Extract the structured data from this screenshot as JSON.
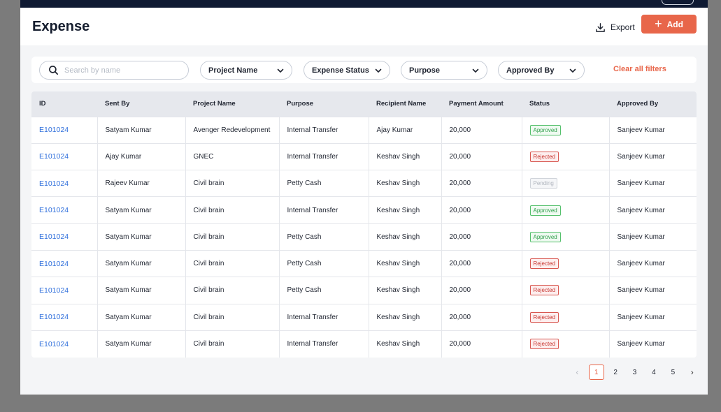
{
  "header": {
    "title": "Expense",
    "export_label": "Export",
    "add_label": "Add"
  },
  "filters": {
    "search_placeholder": "Search by name",
    "dropdowns": [
      "Project Name",
      "Expense Status",
      "Purpose",
      "Approved By"
    ],
    "clear_label": "Clear all filters"
  },
  "table": {
    "columns": [
      "ID",
      "Sent By",
      "Project Name",
      "Purpose",
      "Recipient Name",
      "Payment Amount",
      "Status",
      "Approved By"
    ],
    "rows": [
      {
        "id": "E101024",
        "sent_by": "Satyam Kumar",
        "project": "Avenger Redevelopment",
        "purpose": "Internal Transfer",
        "recipient": "Ajay Kumar",
        "amount": "20,000",
        "status": "Approved",
        "approved_by": "Sanjeev Kumar"
      },
      {
        "id": "E101024",
        "sent_by": "Ajay Kumar",
        "project": "GNEC",
        "purpose": "Internal Transfer",
        "recipient": "Keshav Singh",
        "amount": "20,000",
        "status": "Rejected",
        "approved_by": "Sanjeev Kumar"
      },
      {
        "id": "E101024",
        "sent_by": "Rajeev Kumar",
        "project": "Civil brain",
        "purpose": "Petty Cash",
        "recipient": "Keshav Singh",
        "amount": "20,000",
        "status": "Pending",
        "approved_by": "Sanjeev Kumar"
      },
      {
        "id": "E101024",
        "sent_by": "Satyam Kumar",
        "project": "Civil brain",
        "purpose": "Internal Transfer",
        "recipient": "Keshav Singh",
        "amount": "20,000",
        "status": "Approved",
        "approved_by": "Sanjeev Kumar"
      },
      {
        "id": "E101024",
        "sent_by": "Satyam Kumar",
        "project": "Civil brain",
        "purpose": "Petty Cash",
        "recipient": "Keshav Singh",
        "amount": "20,000",
        "status": "Approved",
        "approved_by": "Sanjeev Kumar"
      },
      {
        "id": "E101024",
        "sent_by": "Satyam Kumar",
        "project": "Civil brain",
        "purpose": "Petty Cash",
        "recipient": "Keshav Singh",
        "amount": "20,000",
        "status": "Rejected",
        "approved_by": "Sanjeev Kumar"
      },
      {
        "id": "E101024",
        "sent_by": "Satyam Kumar",
        "project": "Civil brain",
        "purpose": "Petty Cash",
        "recipient": "Keshav Singh",
        "amount": "20,000",
        "status": "Rejected",
        "approved_by": "Sanjeev Kumar"
      },
      {
        "id": "E101024",
        "sent_by": "Satyam Kumar",
        "project": "Civil brain",
        "purpose": "Internal Transfer",
        "recipient": "Keshav Singh",
        "amount": "20,000",
        "status": "Rejected",
        "approved_by": "Sanjeev Kumar"
      },
      {
        "id": "E101024",
        "sent_by": "Satyam Kumar",
        "project": "Civil brain",
        "purpose": "Internal Transfer",
        "recipient": "Keshav Singh",
        "amount": "20,000",
        "status": "Rejected",
        "approved_by": "Sanjeev Kumar"
      }
    ]
  },
  "pagination": {
    "pages": [
      "1",
      "2",
      "3",
      "4",
      "5"
    ],
    "current": "1",
    "prev_icon": "chevron-left-icon",
    "next_icon": "chevron-right-icon"
  },
  "colors": {
    "accent": "#e8664a",
    "link": "#2f6fdc",
    "approved": "#2e9e4a",
    "rejected": "#c8352f",
    "pending": "#b0b5bd"
  }
}
